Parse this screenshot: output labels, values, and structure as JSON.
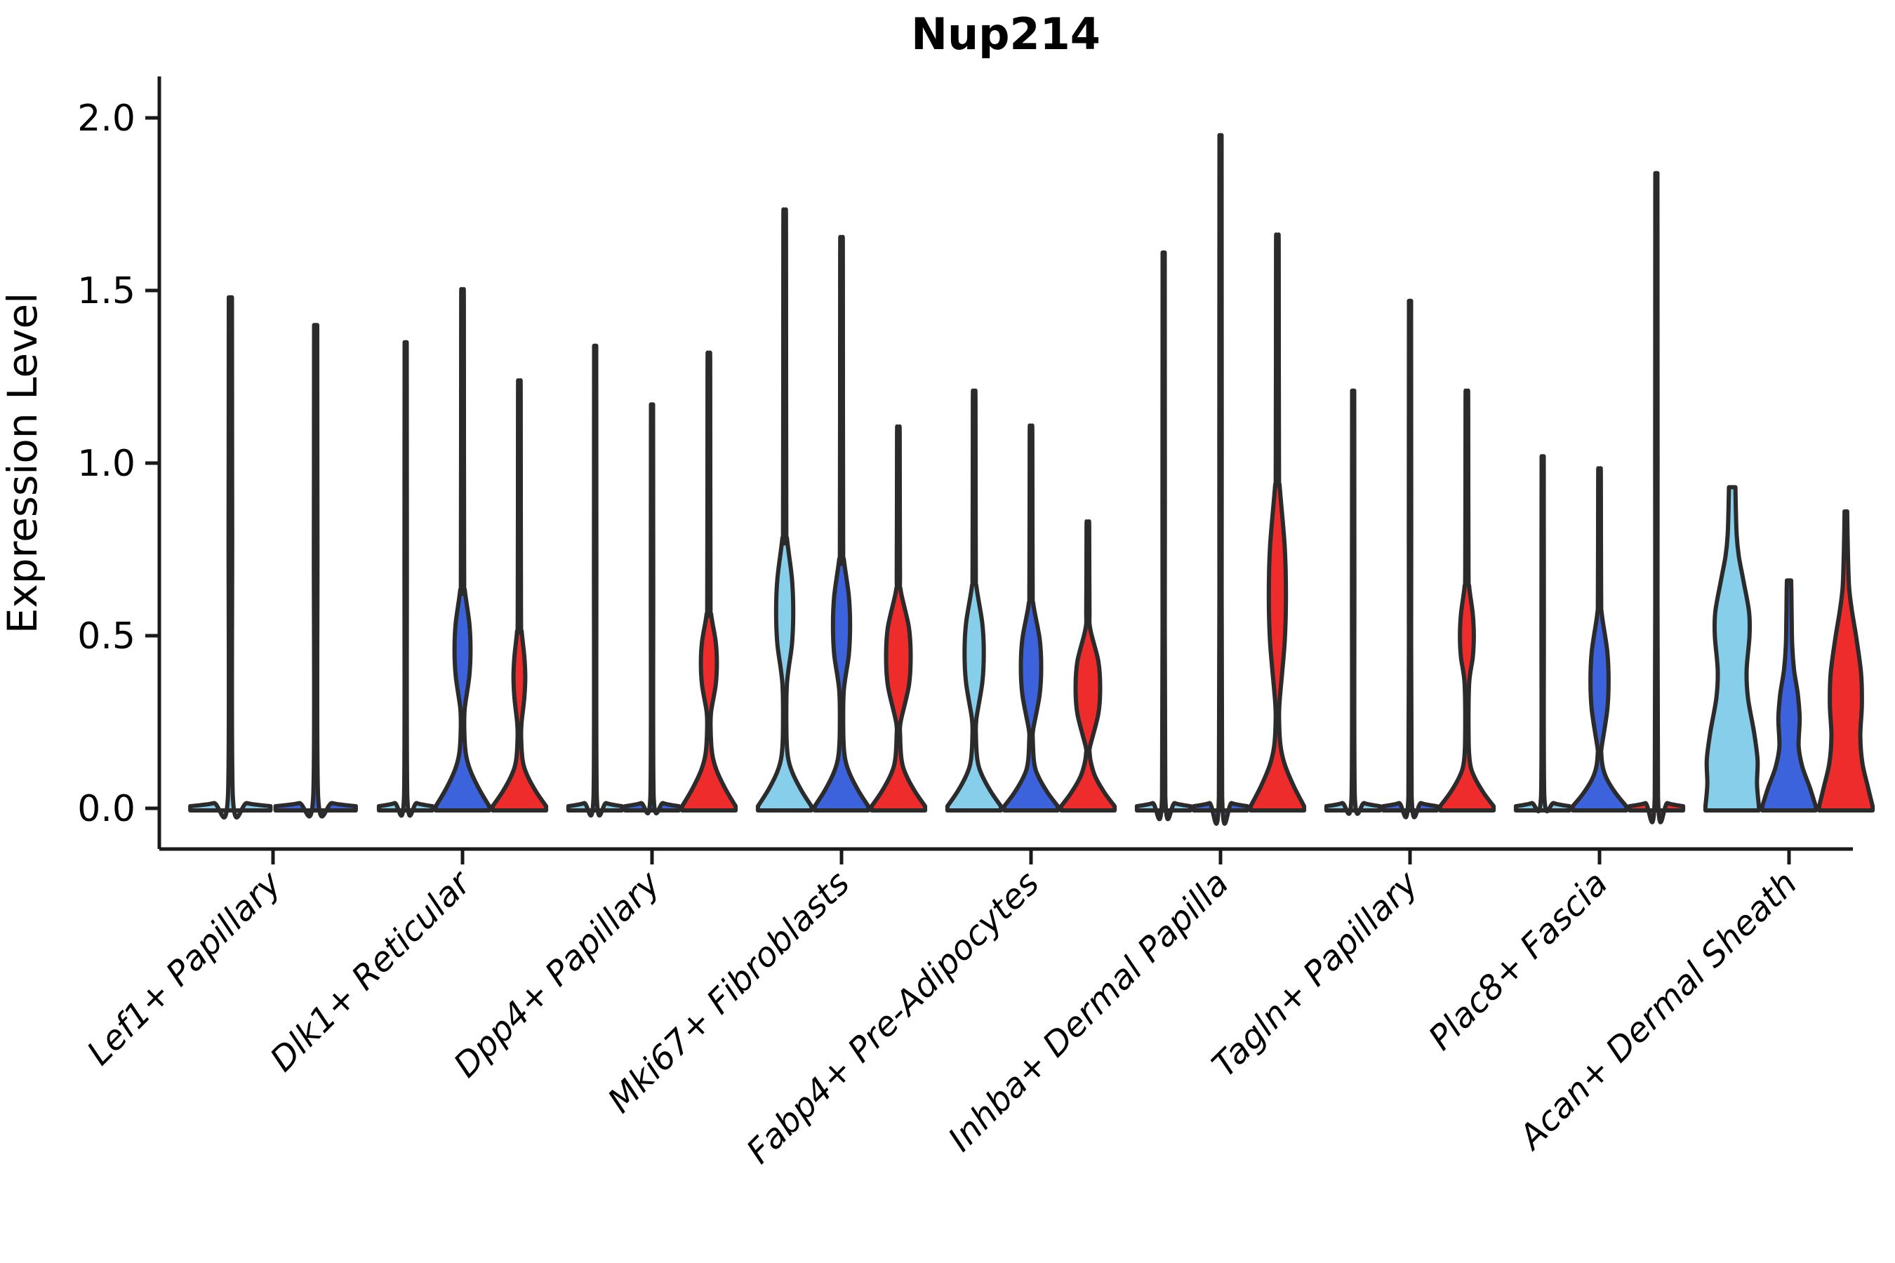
{
  "chart_data": {
    "type": "violin",
    "title": "Nup214",
    "ylabel": "Expression Level",
    "xlabel": "",
    "ylim": [
      0.0,
      2.0
    ],
    "ytick_labels": [
      "0.0",
      "0.5",
      "1.0",
      "1.5",
      "2.0"
    ],
    "ytick_values": [
      0.0,
      0.5,
      1.0,
      1.5,
      2.0
    ],
    "grid": "off",
    "legend": "none",
    "categories": [
      "Lef1+ Papillary",
      "Dlk1+ Reticular",
      "Dpp4+ Papillary",
      "Mki67+ Fibroblasts",
      "Fabp4+ Pre-Adipocytes",
      "Inhba+ Dermal Papilla",
      "Tagln+ Papillary",
      "Plac8+ Fascia",
      "Acan+ Dermal Sheath"
    ],
    "palette": {
      "skyblue": "#87CEEB",
      "blue": "#3D63DC",
      "red": "#EE2C2C",
      "outline": "#2B2B2B",
      "axis": "#1A1A1A"
    },
    "groups": [
      {
        "category": "Lef1+ Papillary",
        "violins": [
          {
            "color": "skyblue",
            "shape": "line",
            "max": 1.48
          },
          {
            "color": "blue",
            "shape": "line",
            "max": 1.4
          }
        ]
      },
      {
        "category": "Dlk1+ Reticular",
        "violins": [
          {
            "color": "skyblue",
            "shape": "line",
            "max": 1.35
          },
          {
            "color": "blue",
            "shape": "lens",
            "max": 1.48,
            "base_h": 0.16,
            "lens_center": 0.46,
            "lens_extent": 0.17,
            "lens_width": 0.3
          },
          {
            "color": "red",
            "shape": "lens",
            "max": 1.22,
            "base_h": 0.14,
            "lens_center": 0.38,
            "lens_extent": 0.13,
            "lens_width": 0.22
          }
        ]
      },
      {
        "category": "Dpp4+ Papillary",
        "violins": [
          {
            "color": "skyblue",
            "shape": "line",
            "max": 1.34
          },
          {
            "color": "blue",
            "shape": "line",
            "max": 1.17
          },
          {
            "color": "red",
            "shape": "lens",
            "max": 1.3,
            "base_h": 0.16,
            "lens_center": 0.42,
            "lens_extent": 0.14,
            "lens_width": 0.3
          }
        ]
      },
      {
        "category": "Mki67+ Fibroblasts",
        "violins": [
          {
            "color": "skyblue",
            "shape": "lens",
            "max": 1.71,
            "base_h": 0.15,
            "lens_center": 0.57,
            "lens_extent": 0.21,
            "lens_width": 0.32
          },
          {
            "color": "blue",
            "shape": "lens",
            "max": 1.63,
            "base_h": 0.15,
            "lens_center": 0.53,
            "lens_extent": 0.19,
            "lens_width": 0.32
          },
          {
            "color": "red",
            "shape": "lens",
            "max": 1.1,
            "base_h": 0.14,
            "lens_center": 0.44,
            "lens_extent": 0.19,
            "lens_width": 0.46
          }
        ]
      },
      {
        "category": "Fabp4+ Pre-Adipocytes",
        "violins": [
          {
            "color": "skyblue",
            "shape": "lens",
            "max": 1.2,
            "base_h": 0.14,
            "lens_center": 0.45,
            "lens_extent": 0.19,
            "lens_width": 0.36
          },
          {
            "color": "blue",
            "shape": "lens",
            "max": 1.1,
            "base_h": 0.13,
            "lens_center": 0.41,
            "lens_extent": 0.18,
            "lens_width": 0.38
          },
          {
            "color": "red",
            "shape": "lens",
            "max": 0.83,
            "base_h": 0.13,
            "lens_center": 0.35,
            "lens_extent": 0.17,
            "lens_width": 0.46
          }
        ]
      },
      {
        "category": "Inhba+ Dermal Papilla",
        "violins": [
          {
            "color": "skyblue",
            "shape": "line",
            "max": 1.61
          },
          {
            "color": "blue",
            "shape": "line",
            "max": 1.95
          },
          {
            "color": "red",
            "shape": "lens",
            "max": 1.65,
            "base_h": 0.18,
            "lens_center": 0.62,
            "lens_extent": 0.31,
            "lens_width": 0.32
          }
        ]
      },
      {
        "category": "Tagln+ Papillary",
        "violins": [
          {
            "color": "skyblue",
            "shape": "line",
            "max": 1.21
          },
          {
            "color": "blue",
            "shape": "line",
            "max": 1.47
          },
          {
            "color": "red",
            "shape": "lens",
            "max": 1.2,
            "base_h": 0.13,
            "lens_center": 0.5,
            "lens_extent": 0.14,
            "lens_width": 0.26
          }
        ]
      },
      {
        "category": "Plac8+ Fascia",
        "violins": [
          {
            "color": "skyblue",
            "shape": "line",
            "max": 1.02
          },
          {
            "color": "blue",
            "shape": "lens",
            "max": 0.98,
            "base_h": 0.12,
            "lens_center": 0.37,
            "lens_extent": 0.19,
            "lens_width": 0.34
          },
          {
            "color": "red",
            "shape": "line",
            "max": 1.84
          }
        ]
      },
      {
        "category": "Acan+ Dermal Sheath",
        "violins": [
          {
            "color": "skyblue",
            "shape": "full",
            "max": 0.93,
            "points": [
              [
                0,
                1
              ],
              [
                0.07,
                0.93
              ],
              [
                0.14,
                0.95
              ],
              [
                0.22,
                0.82
              ],
              [
                0.32,
                0.59
              ],
              [
                0.4,
                0.54
              ],
              [
                0.5,
                0.65
              ],
              [
                0.57,
                0.63
              ],
              [
                0.66,
                0.42
              ],
              [
                0.73,
                0.25
              ],
              [
                0.79,
                0.17
              ],
              [
                0.86,
                0.14
              ],
              [
                0.93,
                0.12
              ]
            ]
          },
          {
            "color": "blue",
            "shape": "full",
            "max": 0.66,
            "points": [
              [
                0,
                1
              ],
              [
                0.06,
                0.78
              ],
              [
                0.12,
                0.5
              ],
              [
                0.18,
                0.36
              ],
              [
                0.26,
                0.4
              ],
              [
                0.33,
                0.33
              ],
              [
                0.4,
                0.19
              ],
              [
                0.47,
                0.12
              ],
              [
                0.55,
                0.1
              ],
              [
                0.62,
                0.09
              ],
              [
                0.66,
                0.08
              ]
            ]
          },
          {
            "color": "red",
            "shape": "full",
            "max": 0.86,
            "points": [
              [
                0,
                1
              ],
              [
                0.06,
                0.83
              ],
              [
                0.13,
                0.62
              ],
              [
                0.21,
                0.54
              ],
              [
                0.3,
                0.6
              ],
              [
                0.39,
                0.57
              ],
              [
                0.49,
                0.4
              ],
              [
                0.57,
                0.23
              ],
              [
                0.64,
                0.12
              ],
              [
                0.73,
                0.08
              ],
              [
                0.8,
                0.06
              ],
              [
                0.86,
                0.05
              ]
            ]
          }
        ]
      }
    ]
  }
}
